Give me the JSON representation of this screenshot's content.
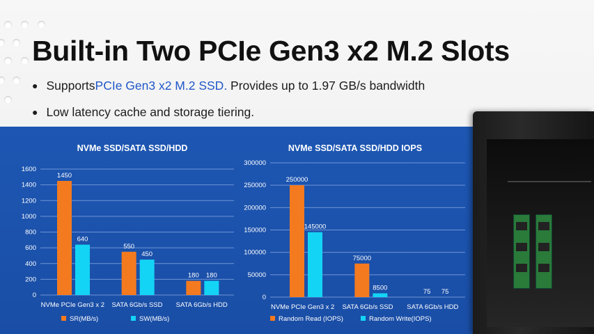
{
  "slide": {
    "title": "Built-in Two PCIe Gen3 x2 M.2 Slots",
    "bullet1_pre": "Supports ",
    "bullet1_highlight": "PCIe Gen3 x2 M.2 SSD.",
    "bullet1_post": " Provides up to 1.97 GB/s bandwidth",
    "bullet2": "Low latency cache and storage tiering.",
    "highlight_color": "#1f57c8",
    "band_color": "#1a50a8"
  },
  "chart_data": [
    {
      "type": "bar",
      "title": "NVMe SSD/SATA SSD/HDD",
      "categories": [
        "NVMe PCIe Gen3 x 2",
        "SATA 6Gb/s SSD",
        "SATA 6Gb/s HDD"
      ],
      "series": [
        {
          "name": "SR(MB/s)",
          "color": "#f47a1f",
          "values": [
            1450,
            550,
            180
          ]
        },
        {
          "name": "SW(MB/s)",
          "color": "#14d4f5",
          "values": [
            640,
            450,
            180
          ]
        }
      ],
      "ylim": [
        0,
        1600
      ],
      "yticks": [
        0,
        200,
        400,
        600,
        800,
        1000,
        1200,
        1400,
        1600
      ],
      "grid": true,
      "legend": "bottom"
    },
    {
      "type": "bar",
      "title": "NVMe SSD/SATA SSD/HDD IOPS",
      "categories": [
        "NVMe PCIe Gen3 x 2",
        "SATA 6Gb/s SSD",
        "SATA 6Gb/s HDD"
      ],
      "series": [
        {
          "name": "Random Read (IOPS)",
          "color": "#f47a1f",
          "values": [
            250000,
            75000,
            75
          ]
        },
        {
          "name": "Random Write(IOPS)",
          "color": "#14d4f5",
          "values": [
            145000,
            8500,
            75
          ]
        }
      ],
      "ylim": [
        0,
        300000
      ],
      "yticks": [
        0,
        50000,
        100000,
        150000,
        200000,
        250000,
        300000
      ],
      "grid": true,
      "legend": "bottom"
    }
  ]
}
